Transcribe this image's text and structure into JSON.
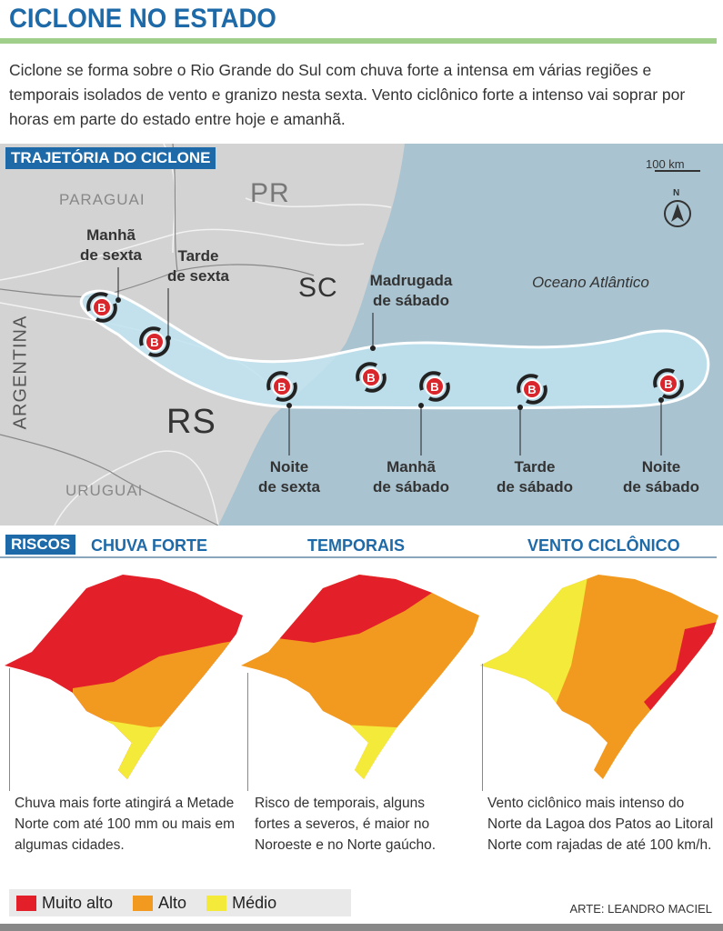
{
  "header": {
    "title": "CICLONE NO ESTADO",
    "lead": "Ciclone se forma sobre o Rio Grande do Sul com chuva forte a intensa em várias regiões e temporais isolados de vento e granizo nesta sexta. Vento ciclônico forte a intenso vai soprar por horas em parte do estado entre hoje e amanhã."
  },
  "trajectory": {
    "section_label": "TRAJETÓRIA DO CICLONE",
    "scale": "100 km",
    "compass_label": "N",
    "places": {
      "paraguai": "PARAGUAI",
      "pr": "PR",
      "sc": "SC",
      "argentina": "ARGENTINA",
      "rs": "RS",
      "uruguai": "URUGUAI",
      "ocean": "Oceano Atlântico"
    },
    "stages": [
      {
        "l1": "Manhã",
        "l2": "de sexta"
      },
      {
        "l1": "Tarde",
        "l2": "de sexta"
      },
      {
        "l1": "Noite",
        "l2": "de sexta"
      },
      {
        "l1": "Madrugada",
        "l2": "de sábado"
      },
      {
        "l1": "Manhã",
        "l2": "de sábado"
      },
      {
        "l1": "Tarde",
        "l2": "de sábado"
      },
      {
        "l1": "Noite",
        "l2": "de sábado"
      }
    ],
    "marker_letter": "B"
  },
  "risks": {
    "section_label": "RISCOS",
    "columns": [
      {
        "title": "CHUVA FORTE",
        "caption": "Chuva mais forte atingirá a Metade Norte com até 100 mm ou mais em algumas cidades."
      },
      {
        "title": "TEMPORAIS",
        "caption": "Risco de temporais, alguns fortes a severos, é maior no Noroeste e no Norte gaúcho."
      },
      {
        "title": "VENTO CICLÔNICO",
        "caption": "Vento ciclônico mais intenso do Norte da Lagoa dos Patos ao Litoral Norte com rajadas de até 100 km/h."
      }
    ]
  },
  "legend": [
    {
      "label": "Muito alto",
      "color": "#e3202a"
    },
    {
      "label": "Alto",
      "color": "#f29a1f"
    },
    {
      "label": "Médio",
      "color": "#f4ea3a"
    }
  ],
  "credit": "ARTE: LEANDRO MACIEL",
  "colors": {
    "brand": "#1e6aa8",
    "sea": "#a9c3d0",
    "land": "#d3d3d3",
    "divider": "#9fcf8a"
  }
}
